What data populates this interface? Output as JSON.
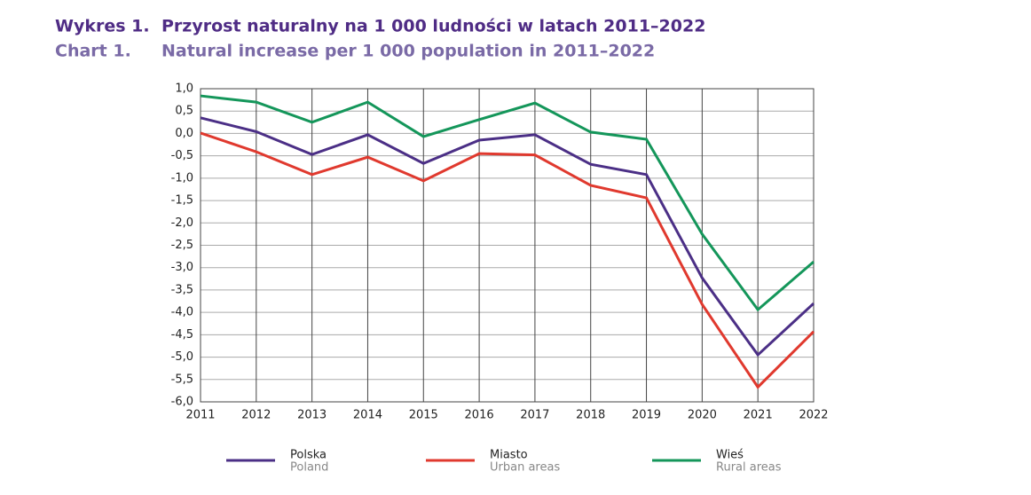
{
  "chart_data": {
    "type": "line",
    "title_label": "Wykres 1.",
    "title": "Przyrost naturalny na 1 000 ludności w latach 2011–2022",
    "subtitle_label": "Chart 1.",
    "subtitle": "Natural increase per 1 000 population in 2011–2022",
    "x": [
      2011,
      2012,
      2013,
      2014,
      2015,
      2016,
      2017,
      2018,
      2019,
      2020,
      2021,
      2022
    ],
    "xlim": [
      2011,
      2022
    ],
    "xticks": [
      2011,
      2012,
      2013,
      2014,
      2015,
      2016,
      2017,
      2018,
      2019,
      2020,
      2021,
      2022
    ],
    "ylim": [
      -6,
      1
    ],
    "yticks": [
      {
        "value": 1,
        "label": "1,0"
      },
      {
        "value": 0.5,
        "label": "0,5"
      },
      {
        "value": 0,
        "label": "0,0"
      },
      {
        "value": -0.5,
        "label": "-0,5"
      },
      {
        "value": -1,
        "label": "-1,0"
      },
      {
        "value": -1.5,
        "label": "-1,5"
      },
      {
        "value": -2,
        "label": "-2,0"
      },
      {
        "value": -2.5,
        "label": "-2,5"
      },
      {
        "value": -3,
        "label": "-3,0"
      },
      {
        "value": -3.5,
        "label": "-3,5"
      },
      {
        "value": -4,
        "label": "-4,0"
      },
      {
        "value": -4.5,
        "label": "-4,5"
      },
      {
        "value": -5,
        "label": "-5,0"
      },
      {
        "value": -5.5,
        "label": "-5,5"
      },
      {
        "value": -6,
        "label": "-6,0"
      }
    ],
    "grid": true,
    "series": [
      {
        "name": "Polska",
        "name_en": "Poland",
        "color": "#4b2f86",
        "values": [
          0.35,
          0.04,
          -0.47,
          -0.03,
          -0.67,
          -0.15,
          -0.03,
          -0.69,
          -0.92,
          -3.23,
          -4.95,
          -3.8
        ]
      },
      {
        "name": "Miasto",
        "name_en": "Urban areas",
        "color": "#e0392e",
        "values": [
          0.01,
          -0.41,
          -0.92,
          -0.53,
          -1.06,
          -0.45,
          -0.48,
          -1.16,
          -1.44,
          -3.82,
          -5.67,
          -4.43
        ]
      },
      {
        "name": "Wieś",
        "name_en": "Rural areas",
        "color": "#14965a",
        "values": [
          0.84,
          0.7,
          0.25,
          0.7,
          -0.07,
          0.31,
          0.68,
          0.03,
          -0.13,
          -2.25,
          -3.94,
          -2.87
        ]
      }
    ]
  }
}
